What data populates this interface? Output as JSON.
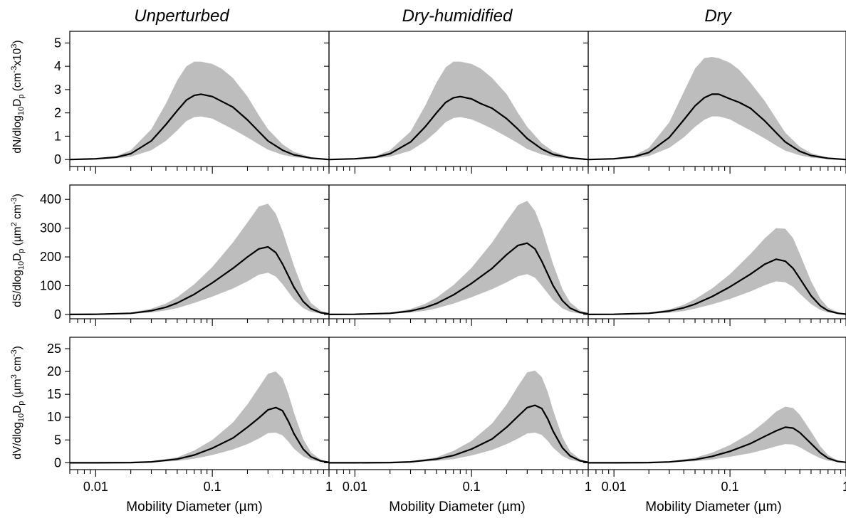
{
  "columns": [
    "Unperturbed",
    "Dry-humidified",
    "Dry"
  ],
  "xlabel": "Mobility Diameter (µm)",
  "ylabels": {
    "number": {
      "main": "dN/dlog",
      "sub": "10",
      "mid": "D",
      "sub2": "p",
      "unit_open": " (cm",
      "sup1": "-3",
      "unit_mid": "x10",
      "sup2": "3",
      "unit_close": ")"
    },
    "surface": {
      "main": "dS/dlog",
      "sub": "10",
      "mid": "D",
      "sub2": "p",
      "unit_open": " (µm",
      "sup1": "2",
      "unit_mid": " cm",
      "sup2": "-3",
      "unit_close": ")"
    },
    "volume": {
      "main": "dV/dlog",
      "sub": "10",
      "mid": "D",
      "sub2": "p",
      "unit_open": " (µm",
      "sup1": "3",
      "unit_mid": " cm",
      "sup2": "-3",
      "unit_close": ")"
    }
  },
  "chart_data": {
    "type": "line",
    "x_scale": "log",
    "xlim": [
      0.006,
      1.0
    ],
    "x_ticks": [
      0.01,
      0.1,
      1
    ],
    "x_tick_labels": [
      "0.01",
      "0.1",
      "1"
    ],
    "rows": [
      {
        "key": "number",
        "ylim": [
          -0.3,
          5.5
        ],
        "y_ticks": [
          0,
          1,
          2,
          3,
          4,
          5
        ],
        "y_tick_labels": [
          "0",
          "1",
          "2",
          "3",
          "4",
          "5"
        ]
      },
      {
        "key": "surface",
        "ylim": [
          -15,
          450
        ],
        "y_ticks": [
          0,
          100,
          200,
          300,
          400
        ],
        "y_tick_labels": [
          "0",
          "100",
          "200",
          "300",
          "400"
        ]
      },
      {
        "key": "volume",
        "ylim": [
          -1.5,
          27.5
        ],
        "y_ticks": [
          0,
          5,
          10,
          15,
          20,
          25
        ],
        "y_tick_labels": [
          "0",
          "5",
          "10",
          "15",
          "20",
          "25"
        ]
      }
    ],
    "panels": [
      {
        "row": "number",
        "column": "Unperturbed",
        "x": [
          0.006,
          0.01,
          0.015,
          0.02,
          0.03,
          0.04,
          0.05,
          0.06,
          0.07,
          0.08,
          0.1,
          0.12,
          0.15,
          0.2,
          0.25,
          0.3,
          0.4,
          0.5,
          0.7,
          1.0
        ],
        "mean": [
          0.0,
          0.03,
          0.1,
          0.25,
          0.8,
          1.5,
          2.1,
          2.55,
          2.75,
          2.8,
          2.7,
          2.5,
          2.25,
          1.7,
          1.2,
          0.8,
          0.4,
          0.2,
          0.06,
          0.0
        ],
        "upper": [
          0.0,
          0.05,
          0.15,
          0.4,
          1.3,
          2.4,
          3.4,
          4.0,
          4.2,
          4.2,
          4.1,
          3.9,
          3.5,
          2.7,
          1.9,
          1.3,
          0.65,
          0.33,
          0.1,
          0.0
        ],
        "lower": [
          0.0,
          0.01,
          0.05,
          0.12,
          0.4,
          0.8,
          1.25,
          1.65,
          1.82,
          1.85,
          1.75,
          1.55,
          1.3,
          0.95,
          0.65,
          0.42,
          0.2,
          0.1,
          0.03,
          0.0
        ]
      },
      {
        "row": "number",
        "column": "Dry-humidified",
        "x": [
          0.006,
          0.01,
          0.015,
          0.02,
          0.03,
          0.04,
          0.05,
          0.06,
          0.07,
          0.08,
          0.1,
          0.12,
          0.15,
          0.2,
          0.25,
          0.3,
          0.4,
          0.5,
          0.7,
          1.0
        ],
        "mean": [
          0.0,
          0.03,
          0.1,
          0.25,
          0.75,
          1.4,
          2.0,
          2.45,
          2.65,
          2.7,
          2.6,
          2.4,
          2.2,
          1.75,
          1.3,
          0.9,
          0.45,
          0.22,
          0.07,
          0.0
        ],
        "upper": [
          0.0,
          0.05,
          0.15,
          0.4,
          1.2,
          2.3,
          3.3,
          3.95,
          4.2,
          4.2,
          4.1,
          3.9,
          3.5,
          2.8,
          2.0,
          1.4,
          0.7,
          0.35,
          0.1,
          0.0
        ],
        "lower": [
          0.0,
          0.01,
          0.05,
          0.12,
          0.38,
          0.78,
          1.2,
          1.6,
          1.78,
          1.82,
          1.72,
          1.55,
          1.32,
          0.98,
          0.7,
          0.45,
          0.22,
          0.1,
          0.03,
          0.0
        ]
      },
      {
        "row": "number",
        "column": "Dry",
        "x": [
          0.006,
          0.01,
          0.015,
          0.02,
          0.03,
          0.04,
          0.05,
          0.06,
          0.07,
          0.08,
          0.1,
          0.12,
          0.15,
          0.2,
          0.25,
          0.3,
          0.4,
          0.5,
          0.7,
          1.0
        ],
        "mean": [
          0.0,
          0.03,
          0.12,
          0.3,
          0.95,
          1.7,
          2.3,
          2.65,
          2.8,
          2.8,
          2.6,
          2.45,
          2.2,
          1.65,
          1.15,
          0.75,
          0.35,
          0.17,
          0.05,
          0.0
        ],
        "upper": [
          0.0,
          0.05,
          0.18,
          0.5,
          1.6,
          2.9,
          3.9,
          4.35,
          4.4,
          4.35,
          4.15,
          3.85,
          3.3,
          2.5,
          1.75,
          1.15,
          0.55,
          0.27,
          0.08,
          0.0
        ],
        "lower": [
          0.0,
          0.01,
          0.06,
          0.15,
          0.5,
          0.95,
          1.4,
          1.7,
          1.85,
          1.85,
          1.72,
          1.5,
          1.25,
          0.9,
          0.6,
          0.38,
          0.18,
          0.08,
          0.02,
          0.0
        ]
      },
      {
        "row": "surface",
        "column": "Unperturbed",
        "x": [
          0.006,
          0.01,
          0.02,
          0.03,
          0.04,
          0.05,
          0.07,
          0.1,
          0.15,
          0.2,
          0.25,
          0.3,
          0.35,
          0.4,
          0.5,
          0.6,
          0.7,
          0.85,
          1.0
        ],
        "mean": [
          0.0,
          0.5,
          4,
          13,
          25,
          40,
          70,
          110,
          160,
          200,
          228,
          235,
          215,
          175,
          95,
          45,
          20,
          6,
          2
        ],
        "upper": [
          0.0,
          0.8,
          6,
          20,
          38,
          60,
          105,
          165,
          250,
          320,
          375,
          385,
          350,
          290,
          170,
          85,
          40,
          13,
          4
        ],
        "lower": [
          0.0,
          0.3,
          2,
          7,
          14,
          22,
          40,
          62,
          90,
          115,
          138,
          145,
          132,
          105,
          52,
          22,
          9,
          3,
          1
        ]
      },
      {
        "row": "surface",
        "column": "Dry-humidified",
        "x": [
          0.006,
          0.01,
          0.02,
          0.03,
          0.04,
          0.05,
          0.07,
          0.1,
          0.15,
          0.2,
          0.25,
          0.3,
          0.35,
          0.4,
          0.5,
          0.6,
          0.7,
          0.85,
          1.0
        ],
        "mean": [
          0.0,
          0.5,
          4,
          12,
          24,
          38,
          68,
          108,
          160,
          208,
          240,
          248,
          228,
          185,
          100,
          48,
          22,
          7,
          2
        ],
        "upper": [
          0.0,
          0.8,
          6,
          19,
          37,
          58,
          102,
          162,
          250,
          325,
          380,
          395,
          360,
          300,
          175,
          88,
          42,
          14,
          4
        ],
        "lower": [
          0.0,
          0.3,
          2,
          7,
          13,
          21,
          38,
          60,
          88,
          112,
          133,
          140,
          128,
          100,
          50,
          21,
          9,
          3,
          1
        ]
      },
      {
        "row": "surface",
        "column": "Dry",
        "x": [
          0.006,
          0.01,
          0.02,
          0.03,
          0.04,
          0.05,
          0.07,
          0.1,
          0.15,
          0.2,
          0.25,
          0.3,
          0.35,
          0.4,
          0.5,
          0.6,
          0.7,
          0.85,
          1.0
        ],
        "mean": [
          0.0,
          0.5,
          4,
          12,
          23,
          36,
          62,
          96,
          140,
          175,
          192,
          185,
          160,
          125,
          65,
          30,
          13,
          4,
          1
        ],
        "upper": [
          0.0,
          0.8,
          6,
          18,
          34,
          53,
          90,
          140,
          210,
          265,
          300,
          298,
          265,
          210,
          115,
          55,
          24,
          8,
          2
        ],
        "lower": [
          0.0,
          0.3,
          2,
          6,
          12,
          20,
          35,
          54,
          80,
          102,
          115,
          112,
          96,
          72,
          36,
          16,
          7,
          2,
          0.5
        ]
      },
      {
        "row": "volume",
        "column": "Unperturbed",
        "x": [
          0.006,
          0.01,
          0.02,
          0.03,
          0.05,
          0.07,
          0.1,
          0.15,
          0.2,
          0.25,
          0.3,
          0.35,
          0.4,
          0.45,
          0.5,
          0.6,
          0.7,
          0.85,
          1.0
        ],
        "mean": [
          0.0,
          0.0,
          0.05,
          0.2,
          0.8,
          1.7,
          3.2,
          5.4,
          7.8,
          9.8,
          11.6,
          12.1,
          11.4,
          9.0,
          6.4,
          3.0,
          1.3,
          0.4,
          0.1
        ],
        "upper": [
          0.0,
          0.0,
          0.08,
          0.3,
          1.2,
          2.7,
          5.0,
          8.8,
          12.8,
          16.5,
          19.5,
          20.0,
          18.5,
          15.0,
          11.0,
          5.2,
          2.3,
          0.7,
          0.2
        ],
        "lower": [
          0.0,
          0.0,
          0.02,
          0.1,
          0.4,
          0.9,
          1.7,
          2.9,
          4.1,
          5.3,
          6.5,
          6.6,
          6.0,
          4.6,
          3.1,
          1.4,
          0.6,
          0.2,
          0.05
        ]
      },
      {
        "row": "volume",
        "column": "Dry-humidified",
        "x": [
          0.006,
          0.01,
          0.02,
          0.03,
          0.05,
          0.07,
          0.1,
          0.15,
          0.2,
          0.25,
          0.3,
          0.35,
          0.4,
          0.45,
          0.5,
          0.6,
          0.7,
          0.85,
          1.0
        ],
        "mean": [
          0.0,
          0.0,
          0.05,
          0.2,
          0.8,
          1.6,
          3.0,
          5.2,
          7.8,
          10.2,
          12.1,
          12.6,
          11.9,
          9.6,
          6.9,
          3.3,
          1.5,
          0.45,
          0.1
        ],
        "upper": [
          0.0,
          0.0,
          0.08,
          0.3,
          1.2,
          2.6,
          4.8,
          8.6,
          12.8,
          16.8,
          19.8,
          20.2,
          18.8,
          15.5,
          11.5,
          5.6,
          2.5,
          0.8,
          0.2
        ],
        "lower": [
          0.0,
          0.0,
          0.02,
          0.1,
          0.4,
          0.8,
          1.6,
          2.8,
          4.1,
          5.3,
          6.4,
          6.6,
          6.1,
          4.8,
          3.3,
          1.5,
          0.65,
          0.2,
          0.05
        ]
      },
      {
        "row": "volume",
        "column": "Dry",
        "x": [
          0.006,
          0.01,
          0.02,
          0.03,
          0.05,
          0.07,
          0.1,
          0.15,
          0.2,
          0.25,
          0.3,
          0.35,
          0.4,
          0.5,
          0.6,
          0.7,
          0.85,
          1.0
        ],
        "mean": [
          0.0,
          0.0,
          0.05,
          0.18,
          0.7,
          1.4,
          2.5,
          4.2,
          5.8,
          7.0,
          7.8,
          7.6,
          6.6,
          4.2,
          2.2,
          1.0,
          0.3,
          0.1
        ],
        "upper": [
          0.0,
          0.0,
          0.08,
          0.28,
          1.1,
          2.2,
          3.9,
          6.5,
          9.0,
          11.2,
          12.3,
          12.0,
          10.5,
          6.8,
          3.6,
          1.7,
          0.5,
          0.15
        ],
        "lower": [
          0.0,
          0.0,
          0.02,
          0.09,
          0.35,
          0.7,
          1.3,
          2.1,
          2.9,
          3.6,
          4.1,
          4.0,
          3.4,
          2.0,
          1.0,
          0.45,
          0.15,
          0.05
        ]
      }
    ]
  }
}
